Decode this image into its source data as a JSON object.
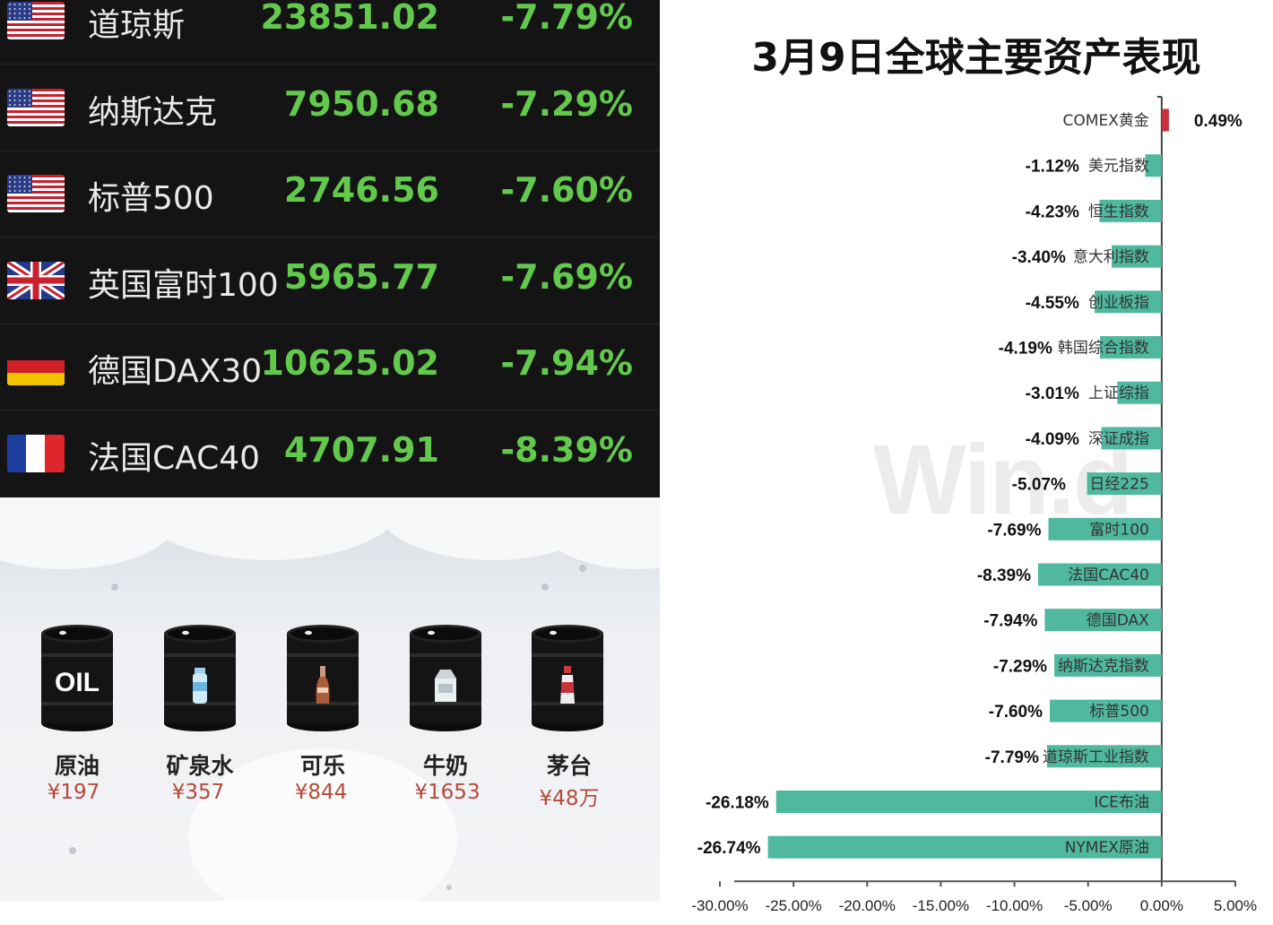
{
  "quotes": [
    {
      "flag": "us-flag-icon",
      "name": "道琼斯",
      "value": "23851.02",
      "pct": "-7.79%"
    },
    {
      "flag": "us-flag-icon",
      "name": "纳斯达克",
      "value": "7950.68",
      "pct": "-7.29%"
    },
    {
      "flag": "us-flag-icon",
      "name": "标普500",
      "value": "2746.56",
      "pct": "-7.60%"
    },
    {
      "flag": "uk-flag-icon",
      "name": "英国富时100",
      "value": "5965.77",
      "pct": "-7.69%"
    },
    {
      "flag": "germany-flag-icon",
      "name": "德国DAX30",
      "value": "10625.02",
      "pct": "-7.94%"
    },
    {
      "flag": "france-flag-icon",
      "name": "法国CAC40",
      "value": "4707.91",
      "pct": "-8.39%"
    }
  ],
  "colors": {
    "quote_bg": "#141414",
    "quote_green": "#63c94d",
    "bar_positive": "#c8323c",
    "bar_negative": "#4fb89e",
    "price_red": "#b54a3b"
  },
  "barrels": [
    {
      "icon": "oil-barrel-icon",
      "mark": "OIL",
      "name": "原油",
      "price": "¥197"
    },
    {
      "icon": "water-bottle-barrel-icon",
      "name": "矿泉水",
      "price": "¥357"
    },
    {
      "icon": "cola-bottle-barrel-icon",
      "name": "可乐",
      "price": "¥844"
    },
    {
      "icon": "milk-carton-barrel-icon",
      "name": "牛奶",
      "price": "¥1653"
    },
    {
      "icon": "liquor-bottle-barrel-icon",
      "name": "茅台",
      "price": "¥48万"
    }
  ],
  "watermark": "Win.d",
  "chart_data": {
    "type": "bar",
    "orientation": "horizontal",
    "title": "3月9日全球主要资产表现",
    "xlabel": "",
    "ylabel": "",
    "xlim": [
      -30,
      5
    ],
    "x_ticks": [
      "-30.00%",
      "-25.00%",
      "-20.00%",
      "-15.00%",
      "-10.00%",
      "-5.00%",
      "0.00%",
      "5.00%"
    ],
    "x_tick_values": [
      -30,
      -25,
      -20,
      -15,
      -10,
      -5,
      0,
      5
    ],
    "grid": false,
    "legend": "none",
    "categories": [
      "COMEX黄金",
      "美元指数",
      "恒生指数",
      "意大利指数",
      "创业板指",
      "韩国综合指数",
      "上证综指",
      "深证成指",
      "日经225",
      "富时100",
      "法国CAC40",
      "德国DAX",
      "纳斯达克指数",
      "标普500",
      "道琼斯工业指数",
      "ICE布油",
      "NYMEX原油"
    ],
    "values": [
      0.49,
      -1.12,
      -4.23,
      -3.4,
      -4.55,
      -4.19,
      -3.01,
      -4.09,
      -5.07,
      -7.69,
      -8.39,
      -7.94,
      -7.29,
      -7.6,
      -7.79,
      -26.18,
      -26.74
    ],
    "value_labels": [
      "0.49%",
      "-1.12%",
      "-4.23%",
      "-3.40%",
      "-4.55%",
      "-4.19%",
      "-3.01%",
      "-4.09%",
      "-5.07%",
      "-7.69%",
      "-8.39%",
      "-7.94%",
      "-7.29%",
      "-7.60%",
      "-7.79%",
      "-26.18%",
      "-26.74%"
    ]
  }
}
